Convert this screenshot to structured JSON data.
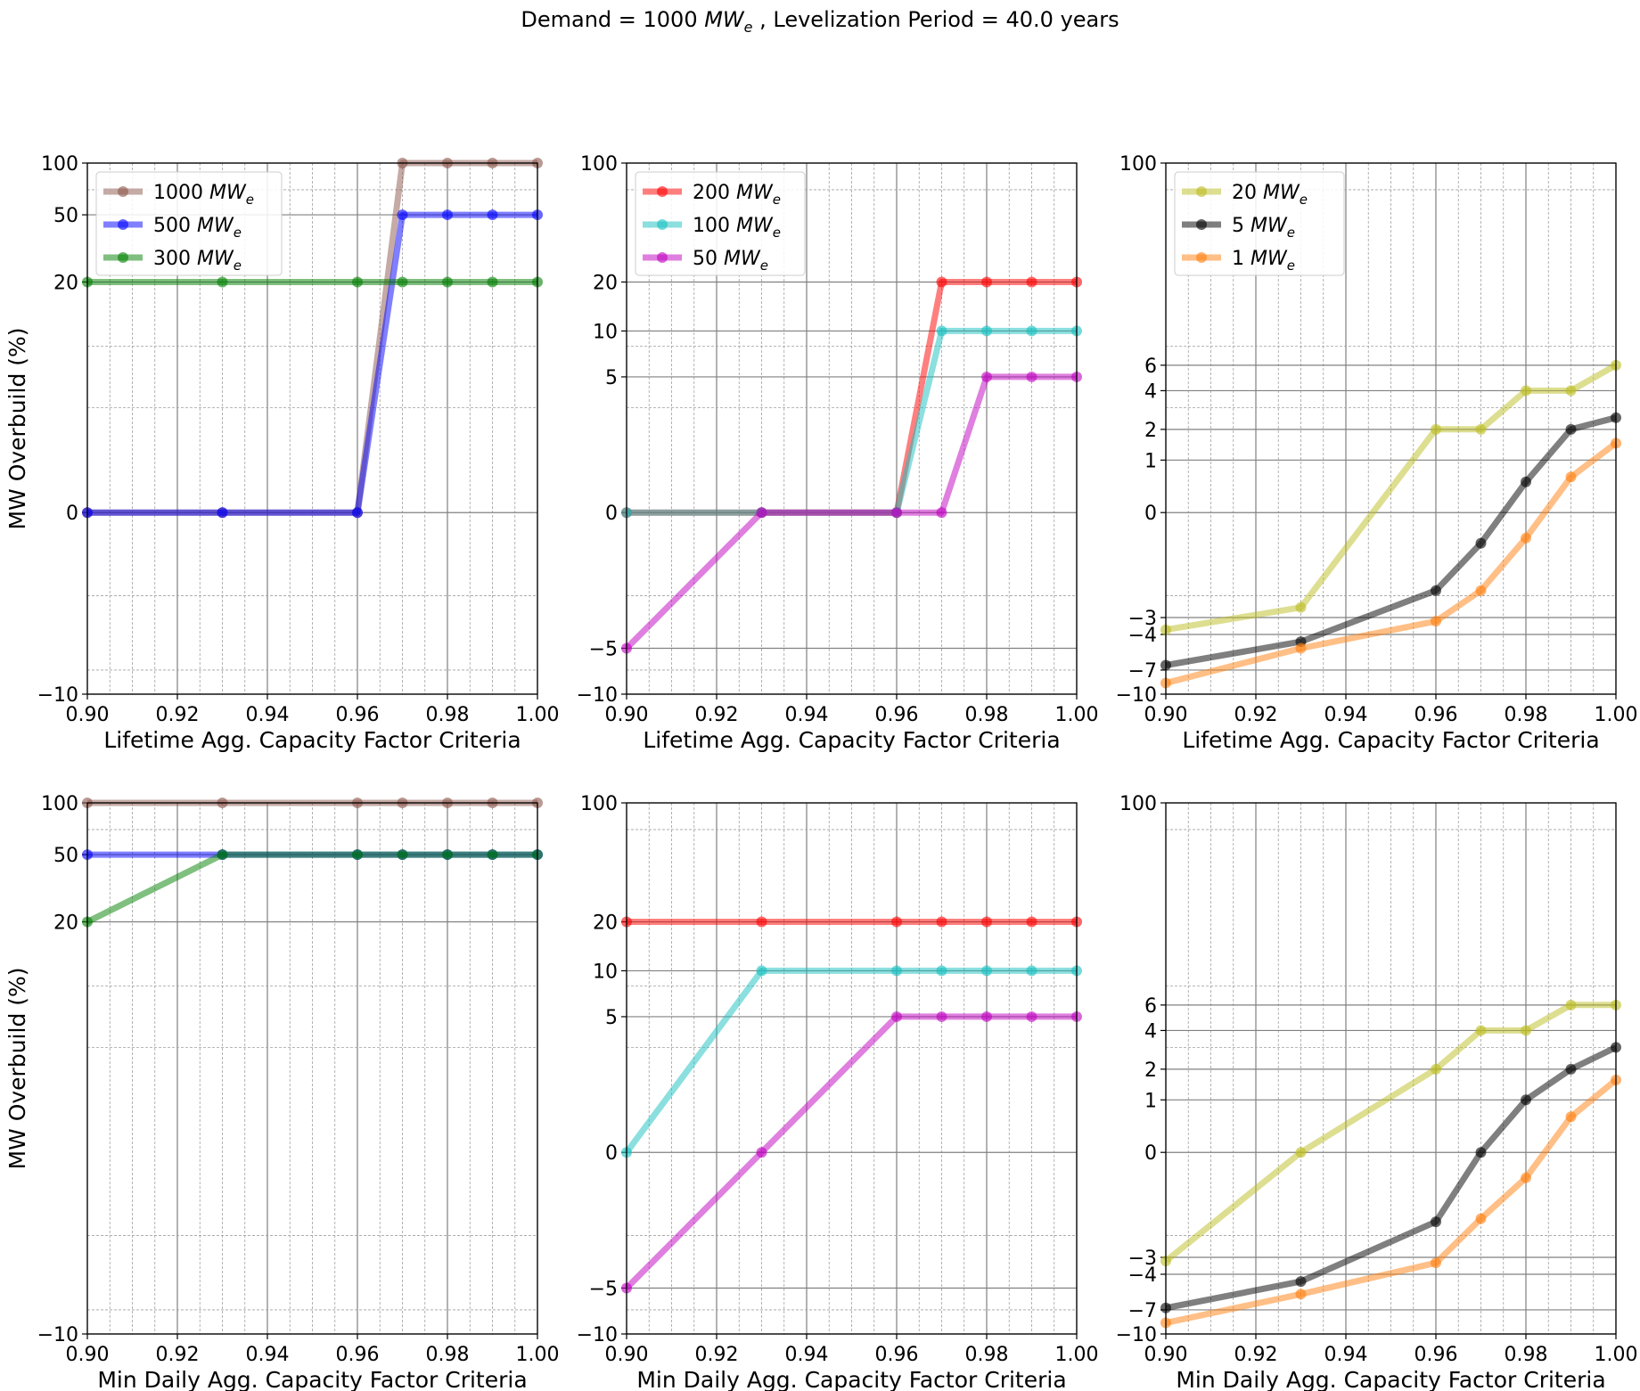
{
  "figure": {
    "suptitle": "Demand  = 1000 MWe , Levelization Period = 40.0 years",
    "suptitle_parts": {
      "prefix": "Demand  = 1000 ",
      "mw": "MW",
      "sub": "e",
      "suffix": " , Levelization Period = 40.0 years"
    }
  },
  "chart_data": [
    {
      "type": "line",
      "xlabel": "Lifetime Agg. Capacity Factor Criteria",
      "ylabel": "MW Overbuild (%)",
      "xlim": [
        0.9,
        1.0
      ],
      "xticks": [
        "0.90",
        "0.92",
        "0.94",
        "0.96",
        "0.98",
        "1.00"
      ],
      "yscale": "symlog",
      "ylim": [
        -10,
        100
      ],
      "yticks": [
        -10,
        0,
        20,
        50,
        100
      ],
      "grid": true,
      "legend": "upper left",
      "series": [
        {
          "name": "1000 MWe",
          "name_base": "1000 ",
          "color": "#8c564b",
          "x": [
            0.9,
            0.93,
            0.96,
            0.97,
            0.98,
            0.99,
            1.0
          ],
          "y": [
            0,
            0,
            0,
            100,
            100,
            100,
            100
          ]
        },
        {
          "name": "500 MWe",
          "name_base": "500 ",
          "color": "#0000ff",
          "x": [
            0.9,
            0.93,
            0.96,
            0.97,
            0.98,
            0.99,
            1.0
          ],
          "y": [
            0,
            0,
            0,
            50,
            50,
            50,
            50
          ]
        },
        {
          "name": "300 MWe",
          "name_base": "300 ",
          "color": "#008000",
          "x": [
            0.9,
            0.93,
            0.96,
            0.97,
            0.98,
            0.99,
            1.0
          ],
          "y": [
            20,
            20,
            20,
            20,
            20,
            20,
            20
          ]
        }
      ]
    },
    {
      "type": "line",
      "xlabel": "Lifetime Agg. Capacity Factor Criteria",
      "ylabel": "",
      "xlim": [
        0.9,
        1.0
      ],
      "xticks": [
        "0.90",
        "0.92",
        "0.94",
        "0.96",
        "0.98",
        "1.00"
      ],
      "yscale": "symlog",
      "ylim": [
        -10,
        100
      ],
      "yticks": [
        -10,
        -5,
        0,
        5,
        10,
        20,
        100
      ],
      "grid": true,
      "legend": "upper left",
      "series": [
        {
          "name": "200 MWe",
          "name_base": "200 ",
          "color": "#ff0000",
          "x": [
            0.9,
            0.93,
            0.96,
            0.97,
            0.98,
            0.99,
            1.0
          ],
          "y": [
            0,
            0,
            0,
            20,
            20,
            20,
            20
          ]
        },
        {
          "name": "100 MWe",
          "name_base": "100 ",
          "color": "#17bfbf",
          "x": [
            0.9,
            0.93,
            0.96,
            0.97,
            0.98,
            0.99,
            1.0
          ],
          "y": [
            0,
            0,
            0,
            10,
            10,
            10,
            10
          ]
        },
        {
          "name": "50 MWe",
          "name_base": "50 ",
          "color": "#bf00bf",
          "x": [
            0.9,
            0.93,
            0.96,
            0.97,
            0.98,
            0.99,
            1.0
          ],
          "y": [
            -5,
            0,
            0,
            0,
            5,
            5,
            5
          ]
        }
      ]
    },
    {
      "type": "line",
      "xlabel": "Lifetime Agg. Capacity Factor Criteria",
      "ylabel": "",
      "xlim": [
        0.9,
        1.0
      ],
      "xticks": [
        "0.90",
        "0.92",
        "0.94",
        "0.96",
        "0.98",
        "1.00"
      ],
      "yscale": "symlog",
      "ylim": [
        -10,
        100
      ],
      "yticks": [
        -10,
        -7,
        -4,
        -3,
        0,
        1,
        2,
        4,
        6,
        100
      ],
      "grid": true,
      "legend": "upper left",
      "series": [
        {
          "name": "20 MWe",
          "name_base": "20 ",
          "color": "#bcbd22",
          "x": [
            0.9,
            0.93,
            0.96,
            0.97,
            0.98,
            0.99,
            1.0
          ],
          "y": [
            -3.7,
            -2.5,
            2,
            2,
            4,
            4,
            6
          ]
        },
        {
          "name": "5 MWe",
          "name_base": "5 ",
          "color": "#000000",
          "x": [
            0.9,
            0.93,
            0.96,
            0.97,
            0.98,
            0.99,
            1.0
          ],
          "y": [
            -6.5,
            -4.5,
            -1.8,
            -0.5,
            0.5,
            2,
            2.5
          ]
        },
        {
          "name": "1 MWe",
          "name_base": "1 ",
          "color": "#ff7f0e",
          "x": [
            0.9,
            0.93,
            0.96,
            0.97,
            0.98,
            0.99,
            1.0
          ],
          "y": [
            -8.5,
            -5,
            -3.2,
            -1.8,
            -0.4,
            0.6,
            1.5
          ]
        }
      ]
    },
    {
      "type": "line",
      "xlabel": "Min Daily Agg. Capacity Factor Criteria",
      "ylabel": "MW Overbuild (%)",
      "xlim": [
        0.9,
        1.0
      ],
      "xticks": [
        "0.90",
        "0.92",
        "0.94",
        "0.96",
        "0.98",
        "1.00"
      ],
      "yscale": "symlog",
      "ylim": [
        -10,
        100
      ],
      "yticks": [
        -10,
        20,
        50,
        100
      ],
      "grid": true,
      "series": [
        {
          "name": "1000 MWe",
          "color": "#8c564b",
          "x": [
            0.9,
            0.93,
            0.96,
            0.97,
            0.98,
            0.99,
            1.0
          ],
          "y": [
            100,
            100,
            100,
            100,
            100,
            100,
            100
          ]
        },
        {
          "name": "500 MWe",
          "color": "#0000ff",
          "x": [
            0.9,
            0.93,
            0.96,
            0.97,
            0.98,
            0.99,
            1.0
          ],
          "y": [
            50,
            50,
            50,
            50,
            50,
            50,
            50
          ]
        },
        {
          "name": "300 MWe",
          "color": "#008000",
          "x": [
            0.9,
            0.93,
            0.96,
            0.97,
            0.98,
            0.99,
            1.0
          ],
          "y": [
            20,
            50,
            50,
            50,
            50,
            50,
            50
          ]
        }
      ]
    },
    {
      "type": "line",
      "xlabel": "Min Daily Agg. Capacity Factor Criteria",
      "ylabel": "",
      "xlim": [
        0.9,
        1.0
      ],
      "xticks": [
        "0.90",
        "0.92",
        "0.94",
        "0.96",
        "0.98",
        "1.00"
      ],
      "yscale": "symlog",
      "ylim": [
        -10,
        100
      ],
      "yticks": [
        -10,
        -5,
        0,
        5,
        10,
        20,
        100
      ],
      "grid": true,
      "series": [
        {
          "name": "200 MWe",
          "color": "#ff0000",
          "x": [
            0.9,
            0.93,
            0.96,
            0.97,
            0.98,
            0.99,
            1.0
          ],
          "y": [
            20,
            20,
            20,
            20,
            20,
            20,
            20
          ]
        },
        {
          "name": "100 MWe",
          "color": "#17bfbf",
          "x": [
            0.9,
            0.93,
            0.96,
            0.97,
            0.98,
            0.99,
            1.0
          ],
          "y": [
            0,
            10,
            10,
            10,
            10,
            10,
            10
          ]
        },
        {
          "name": "50 MWe",
          "color": "#bf00bf",
          "x": [
            0.9,
            0.93,
            0.96,
            0.97,
            0.98,
            0.99,
            1.0
          ],
          "y": [
            -5,
            0,
            5,
            5,
            5,
            5,
            5
          ]
        }
      ]
    },
    {
      "type": "line",
      "xlabel": "Min Daily Agg. Capacity Factor Criteria",
      "ylabel": "",
      "xlim": [
        0.9,
        1.0
      ],
      "xticks": [
        "0.90",
        "0.92",
        "0.94",
        "0.96",
        "0.98",
        "1.00"
      ],
      "yscale": "symlog",
      "ylim": [
        -10,
        100
      ],
      "yticks": [
        -10,
        -7,
        -4,
        -3,
        0,
        1,
        2,
        4,
        6,
        100
      ],
      "grid": true,
      "series": [
        {
          "name": "20 MWe",
          "color": "#bcbd22",
          "x": [
            0.9,
            0.93,
            0.96,
            0.97,
            0.98,
            0.99,
            1.0
          ],
          "y": [
            -3.2,
            0,
            2,
            4,
            4,
            6,
            6
          ]
        },
        {
          "name": "5 MWe",
          "color": "#000000",
          "x": [
            0.9,
            0.93,
            0.96,
            0.97,
            0.98,
            0.99,
            1.0
          ],
          "y": [
            -6.8,
            -4.5,
            -1.5,
            0,
            1,
            2,
            3
          ]
        },
        {
          "name": "1 MWe",
          "color": "#ff7f0e",
          "x": [
            0.9,
            0.93,
            0.96,
            0.97,
            0.98,
            0.99,
            1.0
          ],
          "y": [
            -8.5,
            -5.5,
            -3.3,
            -1.4,
            -0.4,
            0.6,
            1.6
          ]
        }
      ]
    }
  ]
}
